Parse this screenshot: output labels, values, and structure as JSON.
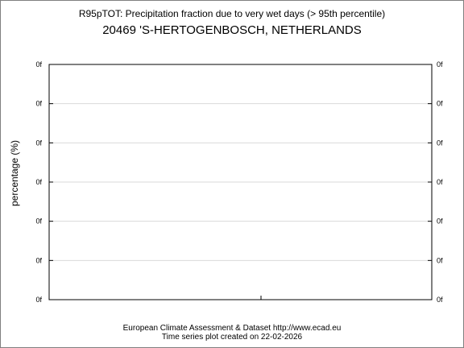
{
  "chart_data": {
    "type": "line",
    "title": "R95pTOT: Precipitation fraction due to very wet days (> 95th percentile)",
    "subtitle": "20469 'S-HERTOGENBOSCH, NETHERLANDS",
    "ylabel": "percentage (%)",
    "xlabel": "",
    "yticks": [
      "0f",
      "0f",
      "0f",
      "0f",
      "0f",
      "0f",
      "0f"
    ],
    "grid": true,
    "series": []
  },
  "footer": {
    "line1": "European Climate Assessment & Dataset  http://www.ecad.eu",
    "line2": "Time series plot created on 22-02-2026"
  },
  "colors": {
    "axis": "#000000",
    "grid": "#d9d9d9",
    "border": "#808080"
  }
}
